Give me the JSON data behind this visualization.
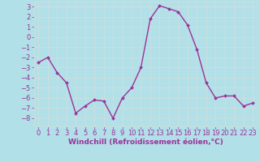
{
  "x": [
    0,
    1,
    2,
    3,
    4,
    5,
    6,
    7,
    8,
    9,
    10,
    11,
    12,
    13,
    14,
    15,
    16,
    17,
    18,
    19,
    20,
    21,
    22,
    23
  ],
  "y": [
    -2.5,
    -2.0,
    -3.5,
    -4.5,
    -7.5,
    -6.8,
    -6.2,
    -6.3,
    -8.0,
    -6.0,
    -5.0,
    -3.0,
    1.8,
    3.1,
    2.8,
    2.5,
    1.2,
    -1.2,
    -4.5,
    -6.0,
    -5.8,
    -5.8,
    -6.8,
    -6.5
  ],
  "line_color": "#993399",
  "marker": "D",
  "marker_size": 2.0,
  "background_color": "#b2e0e8",
  "grid_color": "#c8dfe0",
  "xlabel": "Windchill (Refroidissement éolien,°C)",
  "xlabel_color": "#993399",
  "xlabel_fontsize": 6.5,
  "tick_color": "#993399",
  "tick_fontsize": 6.0,
  "xlim": [
    -0.5,
    23.5
  ],
  "ylim": [
    -8.8,
    3.5
  ],
  "yticks": [
    -8,
    -7,
    -6,
    -5,
    -4,
    -3,
    -2,
    -1,
    0,
    1,
    2,
    3
  ],
  "xticks": [
    0,
    1,
    2,
    3,
    4,
    5,
    6,
    7,
    8,
    9,
    10,
    11,
    12,
    13,
    14,
    15,
    16,
    17,
    18,
    19,
    20,
    21,
    22,
    23
  ]
}
